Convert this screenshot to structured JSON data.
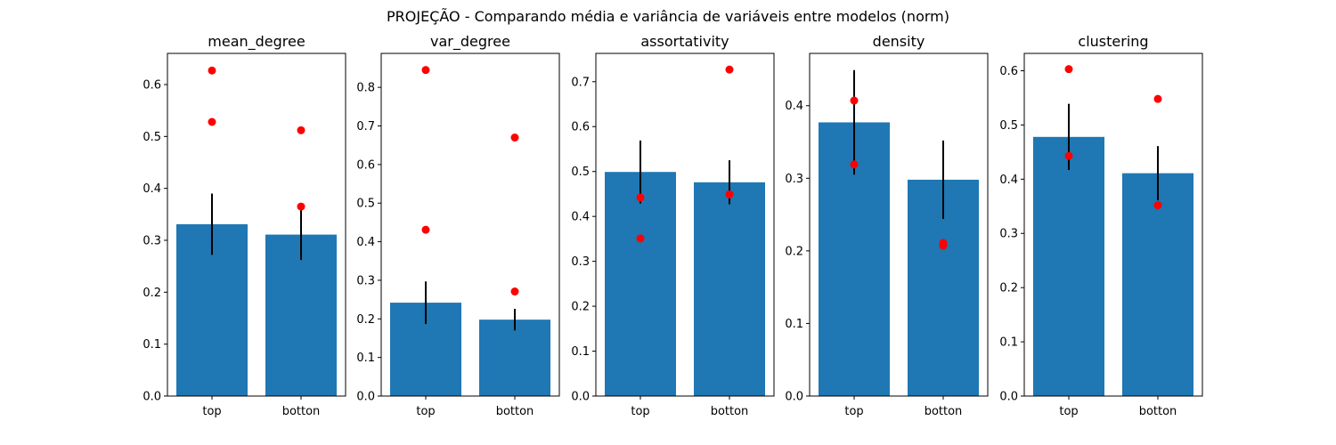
{
  "suptitle": "PROJEÇÃO - Comparando média e variância de variáveis entre modelos (norm)",
  "colors": {
    "bar": "#1f77b4",
    "point": "#ff0000",
    "errorbar": "#000000"
  },
  "chart_data": [
    {
      "type": "bar",
      "title": "mean_degree",
      "categories": [
        "top",
        "botton"
      ],
      "values": [
        0.331,
        0.311
      ],
      "error": [
        0.059,
        0.049
      ],
      "points": [
        [
          0.627,
          0.528
        ],
        [
          0.512,
          0.365
        ]
      ],
      "ylim": [
        0,
        0.66
      ],
      "yticks": [
        "0.0",
        "0.1",
        "0.2",
        "0.3",
        "0.4",
        "0.5",
        "0.6"
      ]
    },
    {
      "type": "bar",
      "title": "var_degree",
      "categories": [
        "top",
        "botton"
      ],
      "values": [
        0.242,
        0.198
      ],
      "error": [
        0.055,
        0.028
      ],
      "points": [
        [
          0.845,
          0.431
        ],
        [
          0.67,
          0.271
        ]
      ],
      "ylim": [
        0,
        0.888
      ],
      "yticks": [
        "0.0",
        "0.1",
        "0.2",
        "0.3",
        "0.4",
        "0.5",
        "0.6",
        "0.7",
        "0.8"
      ]
    },
    {
      "type": "bar",
      "title": "assortativity",
      "categories": [
        "top",
        "botton"
      ],
      "values": [
        0.499,
        0.476
      ],
      "error": [
        0.07,
        0.049
      ],
      "points": [
        [
          0.442,
          0.351
        ],
        [
          0.727,
          0.449
        ]
      ],
      "ylim": [
        0,
        0.763
      ],
      "yticks": [
        "0.0",
        "0.1",
        "0.2",
        "0.3",
        "0.4",
        "0.5",
        "0.6",
        "0.7"
      ]
    },
    {
      "type": "bar",
      "title": "density",
      "categories": [
        "top",
        "botton"
      ],
      "values": [
        0.377,
        0.298
      ],
      "error": [
        0.072,
        0.054
      ],
      "points": [
        [
          0.407,
          0.319
        ],
        [
          0.211,
          0.207
        ]
      ],
      "ylim": [
        0,
        0.472
      ],
      "yticks": [
        "0.0",
        "0.1",
        "0.2",
        "0.3",
        "0.4"
      ]
    },
    {
      "type": "bar",
      "title": "clustering",
      "categories": [
        "top",
        "botton"
      ],
      "values": [
        0.478,
        0.411
      ],
      "error": [
        0.061,
        0.05
      ],
      "points": [
        [
          0.603,
          0.443
        ],
        [
          0.548,
          0.352
        ]
      ],
      "ylim": [
        0,
        0.632
      ],
      "yticks": [
        "0.0",
        "0.1",
        "0.2",
        "0.3",
        "0.4",
        "0.5",
        "0.6"
      ]
    }
  ]
}
